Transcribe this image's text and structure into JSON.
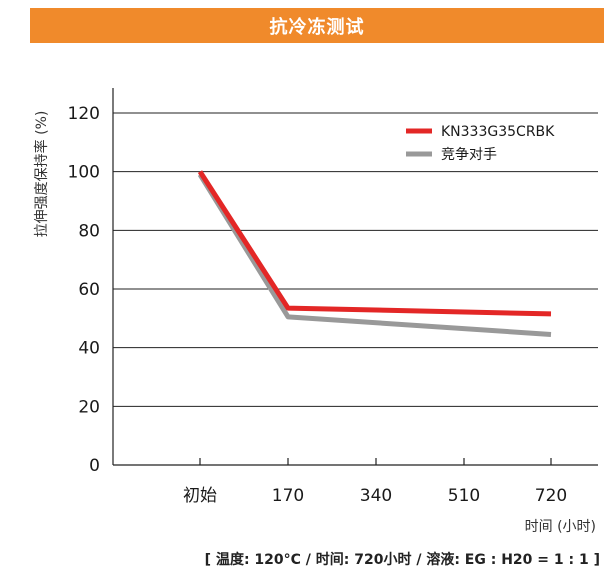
{
  "header": {
    "title": "抗冷冻测试"
  },
  "chart_data": {
    "type": "line",
    "categories": [
      "初始",
      "170",
      "340",
      "510",
      "720"
    ],
    "x": [
      "初始",
      "170",
      "720"
    ],
    "series": [
      {
        "name": "KN333G35CRBK",
        "x": [
          "初始",
          "170",
          "720"
        ],
        "values": [
          100,
          53.5,
          51.5
        ],
        "color": "#e32726"
      },
      {
        "name": "竞争对手",
        "x": [
          "初始",
          "170",
          "720"
        ],
        "values": [
          99,
          50.5,
          44.5
        ],
        "color": "#999999"
      }
    ],
    "ylabel": "拉伸强度保持率 (%)",
    "xlabel": "时间 (小时)",
    "ylim": [
      0,
      120
    ],
    "yticks": [
      "0",
      "20",
      "40",
      "60",
      "80",
      "100",
      "120"
    ],
    "grid": true,
    "legend_position": "top-right"
  },
  "footnote": "[ 温度: 120°C / 时间: 720小时 / 溶液: EG : H20 = 1 : 1 ]"
}
